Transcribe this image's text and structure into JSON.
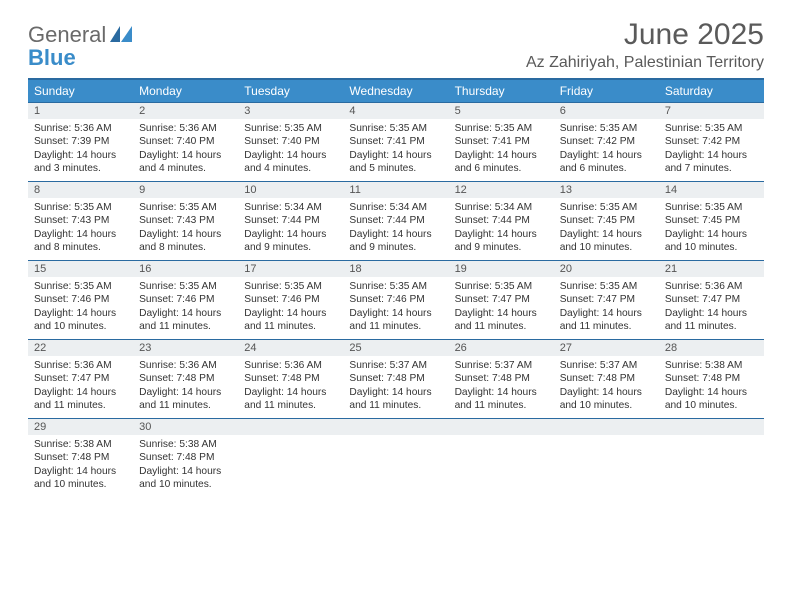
{
  "brand": {
    "general": "General",
    "blue": "Blue"
  },
  "title": "June 2025",
  "location": "Az Zahiriyah, Palestinian Territory",
  "colors": {
    "header_bar": "#3a8cc9",
    "header_border": "#2a6aa0",
    "daynum_bg": "#eceff1",
    "text": "#333333",
    "logo_gray": "#6a6a6a",
    "logo_blue": "#3a8cc9",
    "title_gray": "#5a5a5a"
  },
  "dow": [
    "Sunday",
    "Monday",
    "Tuesday",
    "Wednesday",
    "Thursday",
    "Friday",
    "Saturday"
  ],
  "weeks": [
    [
      {
        "n": "1",
        "sr": "Sunrise: 5:36 AM",
        "ss": "Sunset: 7:39 PM",
        "d1": "Daylight: 14 hours",
        "d2": "and 3 minutes."
      },
      {
        "n": "2",
        "sr": "Sunrise: 5:36 AM",
        "ss": "Sunset: 7:40 PM",
        "d1": "Daylight: 14 hours",
        "d2": "and 4 minutes."
      },
      {
        "n": "3",
        "sr": "Sunrise: 5:35 AM",
        "ss": "Sunset: 7:40 PM",
        "d1": "Daylight: 14 hours",
        "d2": "and 4 minutes."
      },
      {
        "n": "4",
        "sr": "Sunrise: 5:35 AM",
        "ss": "Sunset: 7:41 PM",
        "d1": "Daylight: 14 hours",
        "d2": "and 5 minutes."
      },
      {
        "n": "5",
        "sr": "Sunrise: 5:35 AM",
        "ss": "Sunset: 7:41 PM",
        "d1": "Daylight: 14 hours",
        "d2": "and 6 minutes."
      },
      {
        "n": "6",
        "sr": "Sunrise: 5:35 AM",
        "ss": "Sunset: 7:42 PM",
        "d1": "Daylight: 14 hours",
        "d2": "and 6 minutes."
      },
      {
        "n": "7",
        "sr": "Sunrise: 5:35 AM",
        "ss": "Sunset: 7:42 PM",
        "d1": "Daylight: 14 hours",
        "d2": "and 7 minutes."
      }
    ],
    [
      {
        "n": "8",
        "sr": "Sunrise: 5:35 AM",
        "ss": "Sunset: 7:43 PM",
        "d1": "Daylight: 14 hours",
        "d2": "and 8 minutes."
      },
      {
        "n": "9",
        "sr": "Sunrise: 5:35 AM",
        "ss": "Sunset: 7:43 PM",
        "d1": "Daylight: 14 hours",
        "d2": "and 8 minutes."
      },
      {
        "n": "10",
        "sr": "Sunrise: 5:34 AM",
        "ss": "Sunset: 7:44 PM",
        "d1": "Daylight: 14 hours",
        "d2": "and 9 minutes."
      },
      {
        "n": "11",
        "sr": "Sunrise: 5:34 AM",
        "ss": "Sunset: 7:44 PM",
        "d1": "Daylight: 14 hours",
        "d2": "and 9 minutes."
      },
      {
        "n": "12",
        "sr": "Sunrise: 5:34 AM",
        "ss": "Sunset: 7:44 PM",
        "d1": "Daylight: 14 hours",
        "d2": "and 9 minutes."
      },
      {
        "n": "13",
        "sr": "Sunrise: 5:35 AM",
        "ss": "Sunset: 7:45 PM",
        "d1": "Daylight: 14 hours",
        "d2": "and 10 minutes."
      },
      {
        "n": "14",
        "sr": "Sunrise: 5:35 AM",
        "ss": "Sunset: 7:45 PM",
        "d1": "Daylight: 14 hours",
        "d2": "and 10 minutes."
      }
    ],
    [
      {
        "n": "15",
        "sr": "Sunrise: 5:35 AM",
        "ss": "Sunset: 7:46 PM",
        "d1": "Daylight: 14 hours",
        "d2": "and 10 minutes."
      },
      {
        "n": "16",
        "sr": "Sunrise: 5:35 AM",
        "ss": "Sunset: 7:46 PM",
        "d1": "Daylight: 14 hours",
        "d2": "and 11 minutes."
      },
      {
        "n": "17",
        "sr": "Sunrise: 5:35 AM",
        "ss": "Sunset: 7:46 PM",
        "d1": "Daylight: 14 hours",
        "d2": "and 11 minutes."
      },
      {
        "n": "18",
        "sr": "Sunrise: 5:35 AM",
        "ss": "Sunset: 7:46 PM",
        "d1": "Daylight: 14 hours",
        "d2": "and 11 minutes."
      },
      {
        "n": "19",
        "sr": "Sunrise: 5:35 AM",
        "ss": "Sunset: 7:47 PM",
        "d1": "Daylight: 14 hours",
        "d2": "and 11 minutes."
      },
      {
        "n": "20",
        "sr": "Sunrise: 5:35 AM",
        "ss": "Sunset: 7:47 PM",
        "d1": "Daylight: 14 hours",
        "d2": "and 11 minutes."
      },
      {
        "n": "21",
        "sr": "Sunrise: 5:36 AM",
        "ss": "Sunset: 7:47 PM",
        "d1": "Daylight: 14 hours",
        "d2": "and 11 minutes."
      }
    ],
    [
      {
        "n": "22",
        "sr": "Sunrise: 5:36 AM",
        "ss": "Sunset: 7:47 PM",
        "d1": "Daylight: 14 hours",
        "d2": "and 11 minutes."
      },
      {
        "n": "23",
        "sr": "Sunrise: 5:36 AM",
        "ss": "Sunset: 7:48 PM",
        "d1": "Daylight: 14 hours",
        "d2": "and 11 minutes."
      },
      {
        "n": "24",
        "sr": "Sunrise: 5:36 AM",
        "ss": "Sunset: 7:48 PM",
        "d1": "Daylight: 14 hours",
        "d2": "and 11 minutes."
      },
      {
        "n": "25",
        "sr": "Sunrise: 5:37 AM",
        "ss": "Sunset: 7:48 PM",
        "d1": "Daylight: 14 hours",
        "d2": "and 11 minutes."
      },
      {
        "n": "26",
        "sr": "Sunrise: 5:37 AM",
        "ss": "Sunset: 7:48 PM",
        "d1": "Daylight: 14 hours",
        "d2": "and 11 minutes."
      },
      {
        "n": "27",
        "sr": "Sunrise: 5:37 AM",
        "ss": "Sunset: 7:48 PM",
        "d1": "Daylight: 14 hours",
        "d2": "and 10 minutes."
      },
      {
        "n": "28",
        "sr": "Sunrise: 5:38 AM",
        "ss": "Sunset: 7:48 PM",
        "d1": "Daylight: 14 hours",
        "d2": "and 10 minutes."
      }
    ],
    [
      {
        "n": "29",
        "sr": "Sunrise: 5:38 AM",
        "ss": "Sunset: 7:48 PM",
        "d1": "Daylight: 14 hours",
        "d2": "and 10 minutes."
      },
      {
        "n": "30",
        "sr": "Sunrise: 5:38 AM",
        "ss": "Sunset: 7:48 PM",
        "d1": "Daylight: 14 hours",
        "d2": "and 10 minutes."
      },
      null,
      null,
      null,
      null,
      null
    ]
  ]
}
